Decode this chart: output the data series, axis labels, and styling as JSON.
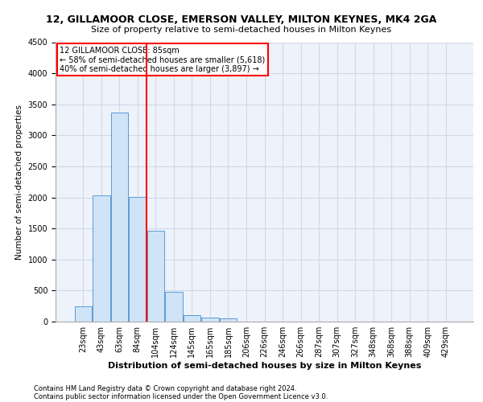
{
  "title_line1": "12, GILLAMOOR CLOSE, EMERSON VALLEY, MILTON KEYNES, MK4 2GA",
  "title_line2": "Size of property relative to semi-detached houses in Milton Keynes",
  "xlabel": "Distribution of semi-detached houses by size in Milton Keynes",
  "ylabel": "Number of semi-detached properties",
  "footer_line1": "Contains HM Land Registry data © Crown copyright and database right 2024.",
  "footer_line2": "Contains public sector information licensed under the Open Government Licence v3.0.",
  "bar_labels": [
    "23sqm",
    "43sqm",
    "63sqm",
    "84sqm",
    "104sqm",
    "124sqm",
    "145sqm",
    "165sqm",
    "185sqm",
    "206sqm",
    "226sqm",
    "246sqm",
    "266sqm",
    "287sqm",
    "307sqm",
    "327sqm",
    "348sqm",
    "368sqm",
    "388sqm",
    "409sqm",
    "429sqm"
  ],
  "bar_values": [
    250,
    2030,
    3370,
    2010,
    1460,
    480,
    110,
    65,
    55,
    0,
    0,
    0,
    0,
    0,
    0,
    0,
    0,
    0,
    0,
    0,
    0
  ],
  "bar_color": "#d0e4f7",
  "bar_edge_color": "#5b9bd5",
  "grid_color": "#d0d8e8",
  "background_color": "#eef2fa",
  "vline_x": 3.5,
  "vline_color": "red",
  "annotation_text": "12 GILLAMOOR CLOSE: 85sqm\n← 58% of semi-detached houses are smaller (5,618)\n40% of semi-detached houses are larger (3,897) →",
  "annotation_box_color": "red",
  "annotation_fill": "white",
  "ylim": [
    0,
    4500
  ],
  "yticks": [
    0,
    500,
    1000,
    1500,
    2000,
    2500,
    3000,
    3500,
    4000,
    4500
  ],
  "title_fontsize": 9,
  "subtitle_fontsize": 8,
  "ylabel_fontsize": 7.5,
  "xlabel_fontsize": 8,
  "tick_fontsize": 7,
  "annotation_fontsize": 7,
  "footer_fontsize": 6
}
